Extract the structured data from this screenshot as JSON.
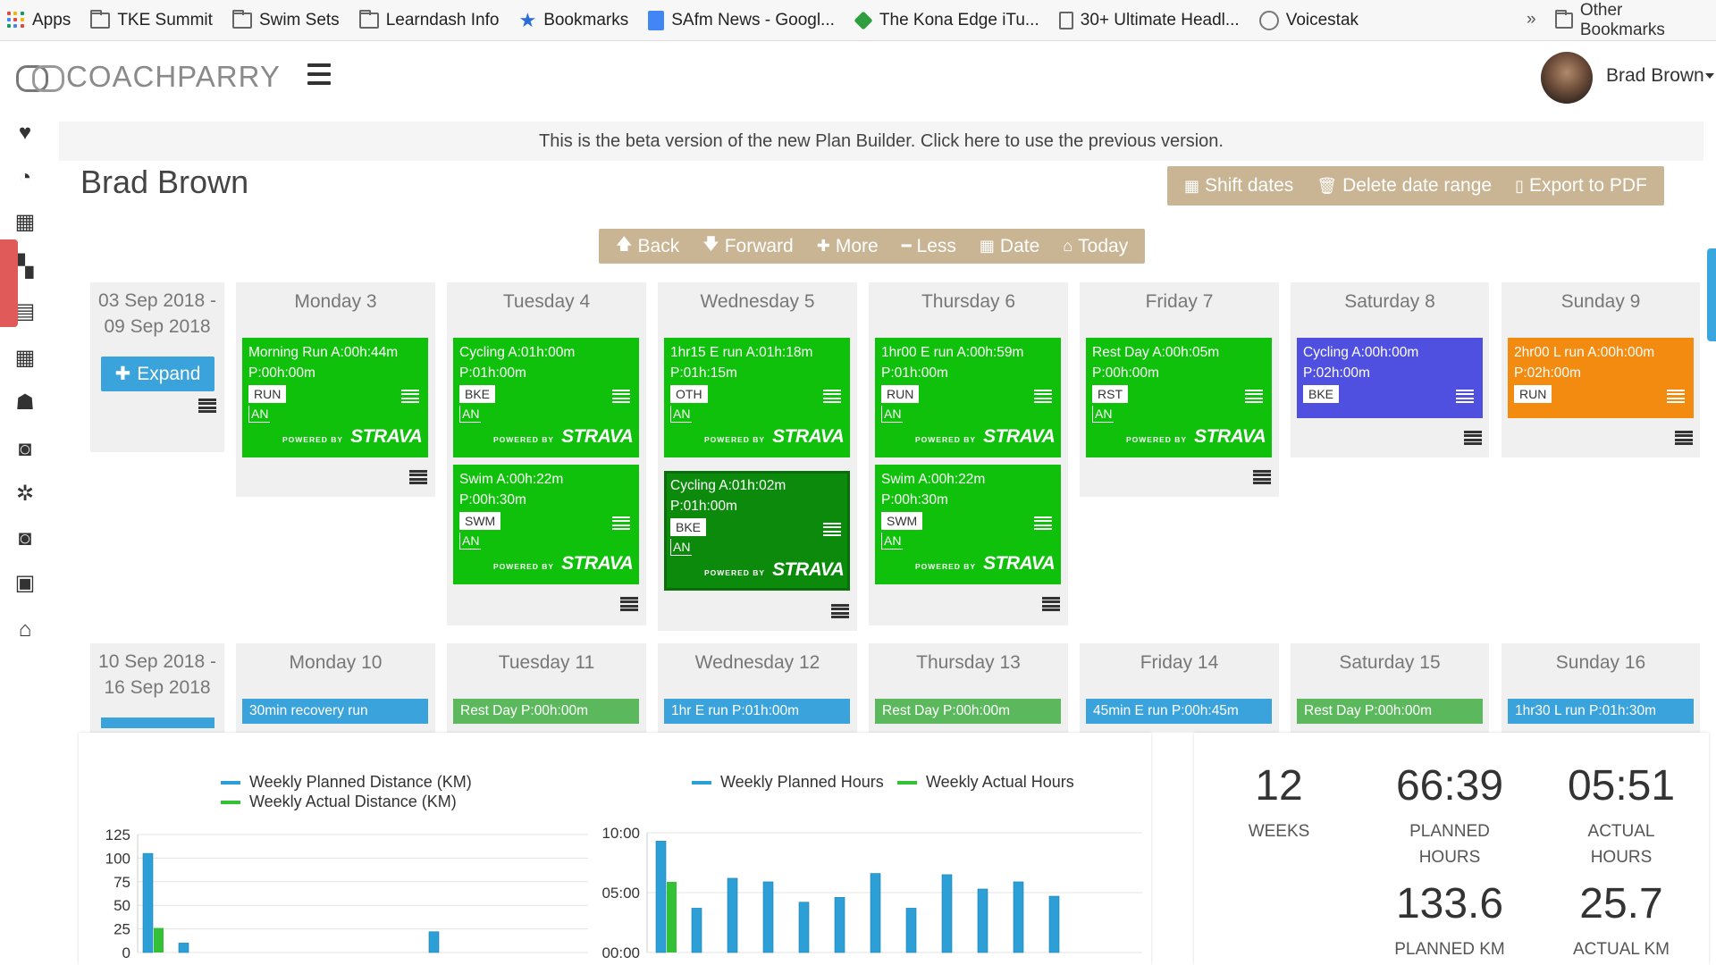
{
  "bookmarks": {
    "items": [
      {
        "label": "Apps",
        "icon": "apps-grid-icon"
      },
      {
        "label": "TKE Summit",
        "icon": "folder-icon"
      },
      {
        "label": "Swim Sets",
        "icon": "folder-icon"
      },
      {
        "label": "Learndash Info",
        "icon": "folder-icon"
      },
      {
        "label": "Bookmarks",
        "icon": "star-icon"
      },
      {
        "label": "SAfm News - Googl...",
        "icon": "google-doc-icon"
      },
      {
        "label": "The Kona Edge iTu...",
        "icon": "kona-icon"
      },
      {
        "label": "30+ Ultimate Headl...",
        "icon": "document-icon"
      },
      {
        "label": "Voicestak",
        "icon": "voicestak-icon"
      }
    ],
    "more": "»",
    "other": "Other Bookmarks"
  },
  "header": {
    "logo": "COACHPARRY",
    "user_name": "Brad Brown"
  },
  "beta_notice": "This is the beta version of the new Plan Builder. Click here to use the previous version.",
  "page_title": "Brad Brown",
  "actions": {
    "shift": "Shift dates",
    "delete": "Delete date range",
    "export": "Export to PDF"
  },
  "nav": {
    "back": "Back",
    "forward": "Forward",
    "more": "More",
    "less": "Less",
    "date": "Date",
    "today": "Today"
  },
  "week1": {
    "range_start": "03 Sep 2018 -",
    "range_end": "09 Sep 2018",
    "expand": "Expand",
    "days": [
      "Monday 3",
      "Tuesday 4",
      "Wednesday 5",
      "Thursday 6",
      "Friday 7",
      "Saturday 8",
      "Sunday 9"
    ]
  },
  "week2": {
    "range_start": "10 Sep 2018 -",
    "range_end": "16 Sep 2018",
    "days": [
      "Monday 10",
      "Tuesday 11",
      "Wednesday 12",
      "Thursday 13",
      "Friday 14",
      "Saturday 15",
      "Sunday 16"
    ],
    "strips": [
      "30min recovery run",
      "Rest Day P:00h:00m",
      "1hr E run P:01h:00m",
      "Rest Day P:00h:00m",
      "45min E run P:00h:45m",
      "Rest Day P:00h:00m",
      "1hr30 L run P:01h:30m"
    ]
  },
  "cards": {
    "mon_run": {
      "t1": "Morning Run A:00h:44m",
      "t2": "P:00h:00m",
      "tag": "RUN",
      "an": "AN"
    },
    "tue_cyc": {
      "t1": "Cycling A:01h:00m",
      "t2": "P:01h:00m",
      "tag": "BKE",
      "an": "AN"
    },
    "tue_swim": {
      "t1": "Swim A:00h:22m",
      "t2": "P:00h:30m",
      "tag": "SWM",
      "an": "AN"
    },
    "wed_run": {
      "t1": "1hr15 E run A:01h:18m",
      "t2": "P:01h:15m",
      "tag": "OTH",
      "an": "AN"
    },
    "wed_cyc": {
      "t1": "Cycling A:01h:02m",
      "t2": "P:01h:00m",
      "tag": "BKE",
      "an": "AN"
    },
    "thu_run": {
      "t1": "1hr00 E run A:00h:59m",
      "t2": "P:01h:00m",
      "tag": "RUN",
      "an": "AN"
    },
    "thu_swim": {
      "t1": "Swim A:00h:22m",
      "t2": "P:00h:30m",
      "tag": "SWM",
      "an": "AN"
    },
    "fri_rest": {
      "t1": "Rest Day A:00h:05m",
      "t2": "P:00h:00m",
      "tag": "RST",
      "an": "AN"
    },
    "sat_cyc": {
      "t1": "Cycling A:00h:00m",
      "t2": "P:02h:00m",
      "tag": "BKE"
    },
    "sun_run": {
      "t1": "2hr00 L run A:00h:00m",
      "t2": "P:02h:00m",
      "tag": "RUN"
    }
  },
  "strava": {
    "powered": "POWERED BY",
    "brand": "STRAVA"
  },
  "stats": {
    "weeks": "12",
    "weeks_label": "WEEKS",
    "planned_hours": "66:39",
    "planned_hours_label": [
      "PLANNED",
      "HOURS"
    ],
    "actual_hours": "05:51",
    "actual_hours_label": [
      "ACTUAL",
      "HOURS"
    ],
    "planned_km": "133.6",
    "planned_km_label": "PLANNED KM",
    "actual_km": "25.7",
    "actual_km_label": "ACTUAL KM"
  },
  "colors": {
    "planned": "#2b9fd6",
    "actual": "#35c135",
    "strava_green": "#10c10b",
    "button_tan": "#c9b594"
  },
  "chart_data": [
    {
      "type": "bar",
      "legend": [
        "Weekly Planned Distance (KM)",
        "Weekly Actual Distance (KM)"
      ],
      "legend_placement": "top",
      "y_ticks": [
        "125",
        "100",
        "75",
        "50",
        "25",
        "0"
      ],
      "ylim": [
        0,
        125
      ],
      "series": [
        {
          "name": "Weekly Planned Distance (KM)",
          "values": [
            105,
            10,
            0,
            0,
            0,
            0,
            0,
            0,
            22,
            0,
            0,
            0
          ]
        },
        {
          "name": "Weekly Actual Distance (KM)",
          "values": [
            26,
            0,
            0,
            0,
            0,
            0,
            0,
            0,
            0,
            0,
            0,
            0
          ]
        }
      ],
      "grid": true
    },
    {
      "type": "bar",
      "legend": [
        "Weekly Planned Hours",
        "Weekly Actual Hours"
      ],
      "legend_placement": "top",
      "y_ticks": [
        "10:00",
        "05:00",
        "00:00"
      ],
      "ylim": [
        0,
        10
      ],
      "series": [
        {
          "name": "Weekly Planned Hours",
          "values": [
            9.3,
            3.7,
            6.2,
            5.9,
            4.2,
            4.6,
            6.6,
            3.7,
            6.5,
            5.3,
            5.9,
            4.7
          ]
        },
        {
          "name": "Weekly Actual Hours",
          "values": [
            5.9,
            0,
            0,
            0,
            0,
            0,
            0,
            0,
            0,
            0,
            0,
            0
          ]
        }
      ],
      "grid": true
    }
  ]
}
